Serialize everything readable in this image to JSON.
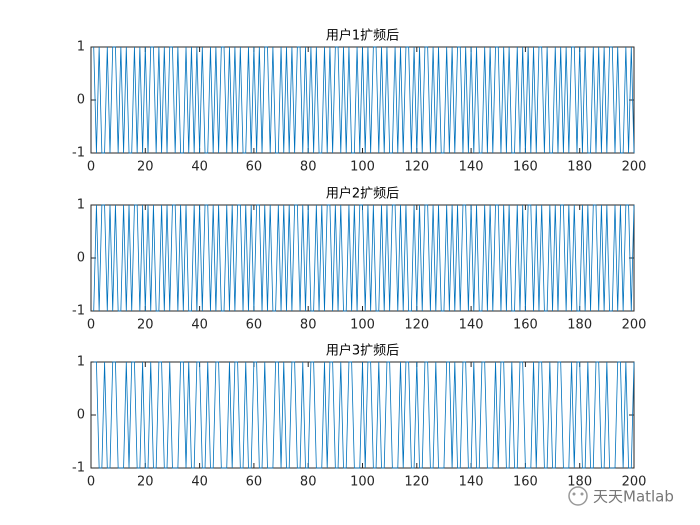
{
  "chart_data": [
    {
      "type": "line",
      "title": "用户1扩频后",
      "x": [
        1,
        2,
        3,
        4,
        5,
        6,
        7,
        8,
        9,
        10,
        11,
        12,
        13,
        14,
        15,
        16,
        17,
        18,
        19,
        20,
        21,
        22,
        23,
        24,
        25,
        26,
        27,
        28,
        29,
        30,
        31,
        32,
        33,
        34,
        35,
        36,
        37,
        38,
        39,
        40,
        41,
        42,
        43,
        44,
        45,
        46,
        47,
        48,
        49,
        50,
        51,
        52,
        53,
        54,
        55,
        56,
        57,
        58,
        59,
        60,
        61,
        62,
        63,
        64,
        65,
        66,
        67,
        68,
        69,
        70,
        71,
        72,
        73,
        74,
        75,
        76,
        77,
        78,
        79,
        80,
        81,
        82,
        83,
        84,
        85,
        86,
        87,
        88,
        89,
        90,
        91,
        92,
        93,
        94,
        95,
        96,
        97,
        98,
        99,
        100,
        101,
        102,
        103,
        104,
        105,
        106,
        107,
        108,
        109,
        110,
        111,
        112,
        113,
        114,
        115,
        116,
        117,
        118,
        119,
        120,
        121,
        122,
        123,
        124,
        125,
        126,
        127,
        128,
        129,
        130,
        131,
        132,
        133,
        134,
        135,
        136,
        137,
        138,
        139,
        140,
        141,
        142,
        143,
        144,
        145,
        146,
        147,
        148,
        149,
        150,
        151,
        152,
        153,
        154,
        155,
        156,
        157,
        158,
        159,
        160,
        161,
        162,
        163,
        164,
        165,
        166,
        167,
        168,
        169,
        170,
        171,
        172,
        173,
        174,
        175,
        176,
        177,
        178,
        179,
        180,
        181,
        182,
        183,
        184,
        185,
        186,
        187,
        188,
        189,
        190,
        191,
        192,
        193,
        194,
        195,
        196,
        197,
        198,
        199,
        200
      ],
      "series": [
        {
          "color": "#0072bd",
          "values": [
            1,
            -1,
            1,
            -1,
            -1,
            1,
            -1,
            1,
            1,
            -1,
            1,
            -1,
            1,
            -1,
            -1,
            1,
            -1,
            1,
            -1,
            1,
            -1,
            1,
            1,
            -1,
            1,
            -1,
            1,
            -1,
            1,
            1,
            -1,
            1,
            -1,
            -1,
            1,
            -1,
            1,
            -1,
            1,
            -1,
            1,
            -1,
            -1,
            1,
            -1,
            1,
            -1,
            1,
            1,
            -1,
            1,
            -1,
            1,
            -1,
            1,
            -1,
            -1,
            1,
            -1,
            1,
            -1,
            1,
            -1,
            1,
            1,
            -1,
            1,
            -1,
            -1,
            1,
            -1,
            1,
            -1,
            1,
            -1,
            1,
            1,
            -1,
            1,
            -1,
            1,
            -1,
            1,
            -1,
            -1,
            1,
            -1,
            1,
            -1,
            1,
            1,
            -1,
            1,
            -1,
            1,
            -1,
            -1,
            1,
            -1,
            1,
            -1,
            1,
            -1,
            1,
            1,
            -1,
            1,
            -1,
            1,
            -1,
            -1,
            1,
            -1,
            1,
            -1,
            1,
            1,
            -1,
            1,
            -1,
            1,
            -1,
            1,
            1,
            -1,
            1,
            -1,
            1,
            -1,
            -1,
            1,
            -1,
            1,
            -1,
            1,
            1,
            -1,
            1,
            -1,
            1,
            -1,
            1,
            -1,
            -1,
            1,
            -1,
            1,
            -1,
            1,
            1,
            -1,
            1,
            -1,
            1,
            -1,
            -1,
            1,
            -1,
            1,
            -1,
            1,
            -1,
            1,
            -1,
            1,
            1,
            -1,
            1,
            -1,
            -1,
            1,
            -1,
            1,
            -1,
            1,
            -1,
            1,
            1,
            -1,
            1,
            -1,
            1,
            -1,
            -1,
            1,
            -1,
            1,
            -1,
            1,
            -1,
            1,
            1,
            -1,
            1,
            -1,
            -1,
            1,
            -1,
            1,
            -1
          ]
        }
      ],
      "xlim": [
        0,
        200
      ],
      "xticks": [
        0,
        20,
        40,
        60,
        80,
        100,
        120,
        140,
        160,
        180,
        200
      ],
      "ylim": [
        -1,
        1
      ],
      "yticks": [
        -1,
        0,
        1
      ]
    },
    {
      "type": "line",
      "title": "用户2扩频后",
      "x": [
        1,
        2,
        3,
        4,
        5,
        6,
        7,
        8,
        9,
        10,
        11,
        12,
        13,
        14,
        15,
        16,
        17,
        18,
        19,
        20,
        21,
        22,
        23,
        24,
        25,
        26,
        27,
        28,
        29,
        30,
        31,
        32,
        33,
        34,
        35,
        36,
        37,
        38,
        39,
        40,
        41,
        42,
        43,
        44,
        45,
        46,
        47,
        48,
        49,
        50,
        51,
        52,
        53,
        54,
        55,
        56,
        57,
        58,
        59,
        60,
        61,
        62,
        63,
        64,
        65,
        66,
        67,
        68,
        69,
        70,
        71,
        72,
        73,
        74,
        75,
        76,
        77,
        78,
        79,
        80,
        81,
        82,
        83,
        84,
        85,
        86,
        87,
        88,
        89,
        90,
        91,
        92,
        93,
        94,
        95,
        96,
        97,
        98,
        99,
        100,
        101,
        102,
        103,
        104,
        105,
        106,
        107,
        108,
        109,
        110,
        111,
        112,
        113,
        114,
        115,
        116,
        117,
        118,
        119,
        120,
        121,
        122,
        123,
        124,
        125,
        126,
        127,
        128,
        129,
        130,
        131,
        132,
        133,
        134,
        135,
        136,
        137,
        138,
        139,
        140,
        141,
        142,
        143,
        144,
        145,
        146,
        147,
        148,
        149,
        150,
        151,
        152,
        153,
        154,
        155,
        156,
        157,
        158,
        159,
        160,
        161,
        162,
        163,
        164,
        165,
        166,
        167,
        168,
        169,
        170,
        171,
        172,
        173,
        174,
        175,
        176,
        177,
        178,
        179,
        180,
        181,
        182,
        183,
        184,
        185,
        186,
        187,
        188,
        189,
        190,
        191,
        192,
        193,
        194,
        195,
        196,
        197,
        198,
        199,
        200
      ],
      "series": [
        {
          "color": "#0072bd",
          "values": [
            -1,
            1,
            -1,
            1,
            1,
            -1,
            1,
            -1,
            1,
            -1,
            -1,
            1,
            -1,
            1,
            -1,
            1,
            1,
            -1,
            1,
            -1,
            1,
            -1,
            1,
            -1,
            -1,
            1,
            -1,
            1,
            -1,
            1,
            1,
            -1,
            1,
            -1,
            1,
            -1,
            -1,
            1,
            -1,
            1,
            -1,
            1,
            1,
            -1,
            1,
            -1,
            1,
            -1,
            -1,
            1,
            -1,
            1,
            -1,
            1,
            1,
            -1,
            1,
            -1,
            1,
            -1,
            1,
            1,
            -1,
            1,
            -1,
            1,
            -1,
            -1,
            1,
            -1,
            1,
            -1,
            1,
            -1,
            1,
            1,
            -1,
            1,
            -1,
            1,
            -1,
            -1,
            1,
            -1,
            1,
            -1,
            1,
            1,
            -1,
            1,
            -1,
            1,
            -1,
            -1,
            1,
            -1,
            1,
            -1,
            1,
            1,
            -1,
            1,
            -1,
            1,
            -1,
            -1,
            1,
            -1,
            1,
            -1,
            1,
            1,
            -1,
            1,
            -1,
            1,
            -1,
            -1,
            1,
            -1,
            1,
            -1,
            1,
            1,
            -1,
            1,
            -1,
            1,
            -1,
            -1,
            1,
            -1,
            1,
            -1,
            1,
            -1,
            1,
            1,
            -1,
            1,
            -1,
            1,
            -1,
            -1,
            1,
            -1,
            1,
            -1,
            1,
            1,
            -1,
            1,
            -1,
            1,
            -1,
            -1,
            1,
            -1,
            1,
            -1,
            1,
            1,
            -1,
            1,
            -1,
            1,
            -1,
            -1,
            1,
            -1,
            1,
            -1,
            1,
            1,
            -1,
            1,
            -1,
            1,
            -1,
            -1,
            1,
            -1,
            1,
            -1,
            1,
            1,
            -1,
            1,
            -1,
            1,
            -1,
            -1,
            1,
            -1,
            1,
            -1,
            1,
            1,
            -1,
            1
          ]
        }
      ],
      "xlim": [
        0,
        200
      ],
      "xticks": [
        0,
        20,
        40,
        60,
        80,
        100,
        120,
        140,
        160,
        180,
        200
      ],
      "ylim": [
        -1,
        1
      ],
      "yticks": [
        -1,
        0,
        1
      ]
    },
    {
      "type": "line",
      "title": "用户3扩频后",
      "x": [
        1,
        2,
        3,
        4,
        5,
        6,
        7,
        8,
        9,
        10,
        11,
        12,
        13,
        14,
        15,
        16,
        17,
        18,
        19,
        20,
        21,
        22,
        23,
        24,
        25,
        26,
        27,
        28,
        29,
        30,
        31,
        32,
        33,
        34,
        35,
        36,
        37,
        38,
        39,
        40,
        41,
        42,
        43,
        44,
        45,
        46,
        47,
        48,
        49,
        50,
        51,
        52,
        53,
        54,
        55,
        56,
        57,
        58,
        59,
        60,
        61,
        62,
        63,
        64,
        65,
        66,
        67,
        68,
        69,
        70,
        71,
        72,
        73,
        74,
        75,
        76,
        77,
        78,
        79,
        80,
        81,
        82,
        83,
        84,
        85,
        86,
        87,
        88,
        89,
        90,
        91,
        92,
        93,
        94,
        95,
        96,
        97,
        98,
        99,
        100,
        101,
        102,
        103,
        104,
        105,
        106,
        107,
        108,
        109,
        110,
        111,
        112,
        113,
        114,
        115,
        116,
        117,
        118,
        119,
        120,
        121,
        122,
        123,
        124,
        125,
        126,
        127,
        128,
        129,
        130,
        131,
        132,
        133,
        134,
        135,
        136,
        137,
        138,
        139,
        140,
        141,
        142,
        143,
        144,
        145,
        146,
        147,
        148,
        149,
        150,
        151,
        152,
        153,
        154,
        155,
        156,
        157,
        158,
        159,
        160,
        161,
        162,
        163,
        164,
        165,
        166,
        167,
        168,
        169,
        170,
        171,
        172,
        173,
        174,
        175,
        176,
        177,
        178,
        179,
        180,
        181,
        182,
        183,
        184,
        185,
        186,
        187,
        188,
        189,
        190,
        191,
        192,
        193,
        194,
        195,
        196,
        197,
        198,
        199,
        200
      ],
      "series": [
        {
          "color": "#0072bd",
          "values": [
            1,
            1,
            -1,
            -1,
            1,
            -1,
            -1,
            1,
            1,
            -1,
            -1,
            -1,
            1,
            -1,
            1,
            1,
            -1,
            -1,
            1,
            -1,
            -1,
            1,
            -1,
            -1,
            1,
            1,
            -1,
            -1,
            1,
            -1,
            -1,
            -1,
            1,
            1,
            -1,
            1,
            -1,
            -1,
            1,
            1,
            -1,
            -1,
            1,
            -1,
            -1,
            1,
            1,
            -1,
            -1,
            -1,
            1,
            -1,
            1,
            1,
            -1,
            -1,
            1,
            -1,
            -1,
            1,
            1,
            -1,
            -1,
            1,
            -1,
            -1,
            -1,
            1,
            1,
            -1,
            1,
            -1,
            -1,
            1,
            1,
            -1,
            -1,
            1,
            -1,
            -1,
            1,
            1,
            -1,
            -1,
            -1,
            1,
            -1,
            1,
            1,
            -1,
            -1,
            1,
            -1,
            -1,
            1,
            1,
            -1,
            -1,
            -1,
            1,
            -1,
            1,
            1,
            -1,
            -1,
            1,
            -1,
            -1,
            1,
            1,
            -1,
            -1,
            -1,
            1,
            -1,
            1,
            1,
            -1,
            -1,
            1,
            -1,
            -1,
            1,
            1,
            -1,
            -1,
            1,
            -1,
            -1,
            -1,
            1,
            1,
            -1,
            1,
            -1,
            -1,
            1,
            1,
            -1,
            -1,
            1,
            -1,
            -1,
            1,
            1,
            -1,
            -1,
            -1,
            1,
            -1,
            1,
            1,
            -1,
            -1,
            1,
            -1,
            -1,
            1,
            1,
            -1,
            -1,
            -1,
            1,
            -1,
            1,
            1,
            -1,
            -1,
            1,
            -1,
            -1,
            1,
            1,
            -1,
            -1,
            -1,
            1,
            -1,
            1,
            1,
            -1,
            -1,
            1,
            -1,
            -1,
            1,
            1,
            -1,
            -1,
            1,
            -1,
            -1,
            -1,
            1,
            1,
            -1,
            1,
            -1,
            -1,
            1
          ]
        }
      ],
      "xlim": [
        0,
        200
      ],
      "xticks": [
        0,
        20,
        40,
        60,
        80,
        100,
        120,
        140,
        160,
        180,
        200
      ],
      "ylim": [
        -1,
        1
      ],
      "yticks": [
        -1,
        0,
        1
      ]
    }
  ],
  "watermark": "天天Matlab"
}
